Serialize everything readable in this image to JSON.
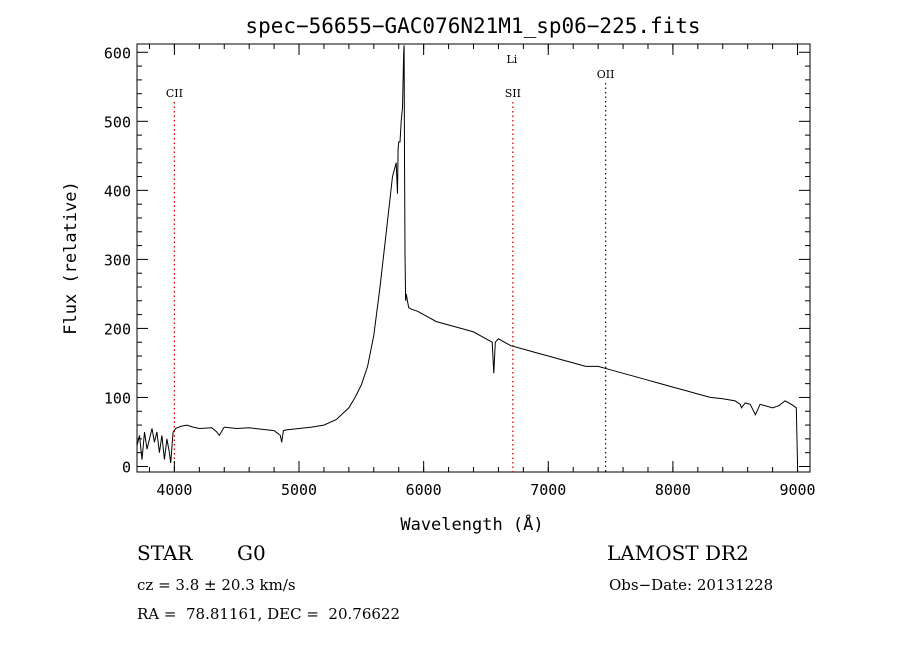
{
  "chart_data": {
    "type": "line",
    "title": "spec−56655−GAC076N21M1_sp06−225.fits",
    "xlabel": "Wavelength (Å)",
    "ylabel": "Flux (relative)",
    "xlim": [
      3700,
      9100
    ],
    "ylim": [
      -8,
      612
    ],
    "xticks": [
      4000,
      5000,
      6000,
      7000,
      8000,
      9000
    ],
    "yticks": [
      0,
      100,
      200,
      300,
      400,
      500,
      600
    ],
    "grid": false,
    "series": [
      {
        "color": "#000000",
        "x": [
          3700,
          3720,
          3740,
          3760,
          3780,
          3800,
          3820,
          3840,
          3860,
          3880,
          3900,
          3920,
          3940,
          3960,
          3970,
          3990,
          4010,
          4050,
          4100,
          4150,
          4200,
          4300,
          4340,
          4360,
          4400,
          4500,
          4600,
          4700,
          4800,
          4850,
          4861,
          4875,
          4900,
          5000,
          5100,
          5200,
          5300,
          5400,
          5450,
          5500,
          5550,
          5600,
          5650,
          5700,
          5750,
          5780,
          5790,
          5795,
          5800,
          5810,
          5820,
          5830,
          5840,
          5843,
          5846,
          5850,
          5855,
          5860,
          5880,
          5900,
          5950,
          6000,
          6100,
          6200,
          6300,
          6400,
          6500,
          6550,
          6563,
          6575,
          6600,
          6700,
          6800,
          6900,
          7000,
          7100,
          7200,
          7300,
          7400,
          7500,
          7600,
          7700,
          7800,
          7900,
          8000,
          8100,
          8200,
          8300,
          8400,
          8500,
          8540,
          8550,
          8580,
          8620,
          8662,
          8700,
          8800,
          8850,
          8900,
          8950,
          8990,
          9000
        ],
        "y": [
          30,
          45,
          10,
          50,
          25,
          40,
          55,
          35,
          50,
          20,
          45,
          10,
          40,
          20,
          5,
          50,
          55,
          58,
          60,
          57,
          55,
          56,
          50,
          45,
          57,
          55,
          56,
          54,
          52,
          45,
          35,
          52,
          53,
          55,
          57,
          60,
          68,
          85,
          100,
          118,
          145,
          190,
          260,
          340,
          420,
          440,
          395,
          460,
          470,
          470,
          500,
          520,
          600,
          610,
          450,
          310,
          240,
          250,
          230,
          228,
          225,
          220,
          210,
          205,
          200,
          195,
          185,
          180,
          135,
          180,
          185,
          175,
          170,
          165,
          160,
          155,
          150,
          145,
          145,
          140,
          135,
          130,
          125,
          120,
          115,
          110,
          105,
          100,
          98,
          95,
          90,
          85,
          92,
          90,
          75,
          90,
          85,
          88,
          95,
          90,
          85,
          5
        ]
      }
    ],
    "annotations": [
      {
        "label": "CII",
        "x": 4000,
        "line_color": "#dd0000"
      },
      {
        "label": "SII",
        "x": 6716,
        "line_color": "#dd0000"
      },
      {
        "label": "Li",
        "x": 6708,
        "line_color": null
      },
      {
        "label": "OII",
        "x": 7460,
        "line_color": "#222222"
      }
    ]
  },
  "info": {
    "object_class": "STAR",
    "subclass": "G0",
    "survey": "LAMOST DR2",
    "redshift": "cz = 3.8 ± 20.3 km/s",
    "obs_date": "Obs−Date: 20131228",
    "coords": "RA =  78.81161, DEC =  20.76622"
  }
}
